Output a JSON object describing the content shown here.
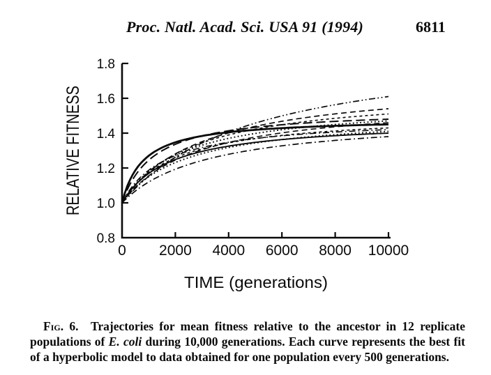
{
  "page": {
    "header": {
      "journal": "Proc. Natl. Acad. Sci. USA 91 (1994)",
      "page_number": "6811"
    },
    "ink_color": "#0a0a0a",
    "background_color": "#ffffff"
  },
  "figure": {
    "caption": {
      "segments": [
        {
          "text": "Fig. 6.",
          "style": "smallcaps"
        },
        {
          "text": "  Trajectories for mean fitness relative to the ancestor in 12 replicate populations of ",
          "style": "normal"
        },
        {
          "text": "E. coli",
          "style": "italic"
        },
        {
          "text": " during 10,000 generations. Each curve represents the best fit of a hyperbolic model to data obtained for one population every 500 generations.",
          "style": "normal"
        }
      ]
    }
  },
  "chart_data": {
    "type": "line",
    "title": "",
    "xlabel": "TIME (generations)",
    "ylabel": "RELATIVE FITNESS",
    "xlim": [
      0,
      10000
    ],
    "ylim": [
      0.8,
      1.8
    ],
    "x_ticks": [
      0,
      2000,
      4000,
      6000,
      8000,
      10000
    ],
    "y_ticks": [
      0.8,
      1.0,
      1.2,
      1.4,
      1.6,
      1.8
    ],
    "grid": false,
    "legend": false,
    "model": "hyperbolic fit w(t) = 1 + a*t/(b+t), with a = (w10000 - 1)*(b + 10000)/10000; all curves start at relative fitness 1.0",
    "x_sample_points": [
      0,
      2000,
      4000,
      6000,
      8000,
      10000
    ],
    "series": [
      {
        "name": "curve-1",
        "w10000": 1.61,
        "b": 5000,
        "dash": "dash-dot-dot",
        "width": 1.7,
        "values": [
          1.0,
          1.261,
          1.407,
          1.499,
          1.563,
          1.61
        ]
      },
      {
        "name": "curve-2",
        "w10000": 1.54,
        "b": 3000,
        "dash": "dash",
        "width": 1.7,
        "values": [
          1.0,
          1.281,
          1.401,
          1.468,
          1.511,
          1.54
        ]
      },
      {
        "name": "curve-3",
        "w10000": 1.51,
        "b": 2600,
        "dash": "short-dash",
        "width": 1.6,
        "values": [
          1.0,
          1.279,
          1.39,
          1.448,
          1.485,
          1.51
        ]
      },
      {
        "name": "curve-4",
        "w10000": 1.48,
        "b": 1200,
        "dash": "long-dash",
        "width": 2.0,
        "values": [
          1.0,
          1.336,
          1.414,
          1.448,
          1.467,
          1.48
        ]
      },
      {
        "name": "curve-5",
        "w10000": 1.47,
        "b": 2200,
        "dash": "dotted",
        "width": 2.0,
        "values": [
          1.0,
          1.273,
          1.37,
          1.42,
          1.45,
          1.47
        ]
      },
      {
        "name": "curve-6",
        "w10000": 1.46,
        "b": 2800,
        "dash": "dash",
        "width": 1.6,
        "values": [
          1.0,
          1.245,
          1.346,
          1.401,
          1.436,
          1.46
        ]
      },
      {
        "name": "curve-7",
        "w10000": 1.45,
        "b": 800,
        "dash": "solid",
        "width": 2.8,
        "values": [
          1.0,
          1.347,
          1.405,
          1.429,
          1.442,
          1.45
        ]
      },
      {
        "name": "curve-8",
        "w10000": 1.43,
        "b": 2000,
        "dash": "short-dash",
        "width": 1.6,
        "values": [
          1.0,
          1.258,
          1.344,
          1.387,
          1.413,
          1.43
        ]
      },
      {
        "name": "curve-9",
        "w10000": 1.42,
        "b": 1600,
        "dash": "dash-dot",
        "width": 1.6,
        "values": [
          1.0,
          1.271,
          1.348,
          1.385,
          1.406,
          1.42
        ]
      },
      {
        "name": "curve-10",
        "w10000": 1.41,
        "b": 2400,
        "dash": "dotted",
        "width": 2.0,
        "values": [
          1.0,
          1.231,
          1.318,
          1.363,
          1.391,
          1.41
        ]
      },
      {
        "name": "curve-11",
        "w10000": 1.4,
        "b": 1800,
        "dash": "solid",
        "width": 1.9,
        "values": [
          1.0,
          1.248,
          1.326,
          1.363,
          1.385,
          1.4
        ]
      },
      {
        "name": "curve-12",
        "w10000": 1.38,
        "b": 3200,
        "dash": "dash-dot",
        "width": 1.7,
        "values": [
          1.0,
          1.193,
          1.279,
          1.327,
          1.358,
          1.38
        ]
      }
    ]
  }
}
